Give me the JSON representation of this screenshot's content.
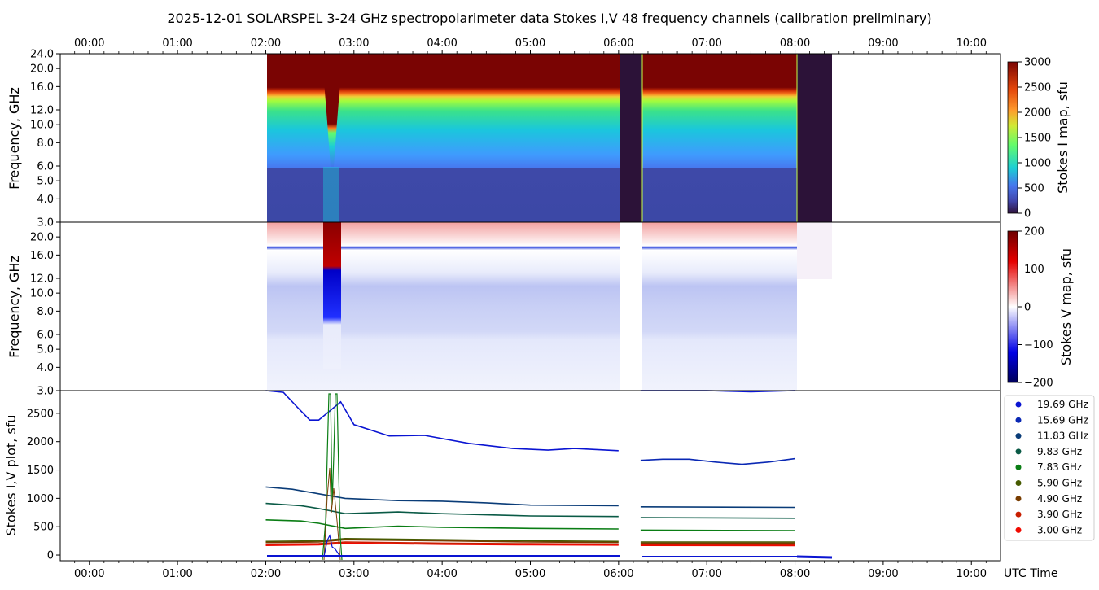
{
  "title": "2025-12-01  SOLARSPEL  3-24 GHz spectropolarimeter data   Stokes I,V   48 frequency channels   (calibration preliminary)",
  "chart_data": {
    "type": "heatmap",
    "date": "2025-12-01",
    "time_axis": {
      "label": "UTC Time",
      "range_hours": [
        -0.33,
        10.33
      ],
      "ticks": [
        "00:00",
        "01:00",
        "02:00",
        "03:00",
        "04:00",
        "05:00",
        "06:00",
        "07:00",
        "08:00",
        "09:00",
        "10:00"
      ],
      "data_start": "02:00",
      "data_end": "08:25",
      "gaps": [
        [
          "06:00",
          "06:15"
        ],
        [
          "08:00",
          "08:25"
        ]
      ]
    },
    "stokes_i_map": {
      "ylabel": "Frequency, GHz",
      "yticks": [
        "3.0",
        "4.0",
        "5.0",
        "6.0",
        "8.0",
        "10.0",
        "12.0",
        "16.0",
        "20.0",
        "24.0"
      ],
      "yrange_ghz": [
        3.0,
        24.0
      ],
      "colorbar": {
        "label": "Stokes I map, sfu",
        "range": [
          0,
          3000
        ],
        "ticks": [
          "0",
          "500",
          "1000",
          "1500",
          "2000",
          "2500",
          "3000"
        ]
      }
    },
    "stokes_v_map": {
      "ylabel": "Frequency, GHz",
      "yticks": [
        "3.0",
        "4.0",
        "5.0",
        "6.0",
        "8.0",
        "10.0",
        "12.0",
        "16.0",
        "20.0"
      ],
      "yrange_ghz": [
        3.0,
        24.0
      ],
      "colorbar": {
        "label": "Stokes V map, sfu",
        "range": [
          -200,
          200
        ],
        "ticks": [
          "200",
          "100",
          "0",
          "−100",
          "−200"
        ]
      }
    },
    "stokes_iv_plot": {
      "type": "line",
      "ylabel": "Stokes I,V plot, sfu",
      "ylim": [
        -100,
        2900
      ],
      "yticks": [
        "0",
        "500",
        "1000",
        "1500",
        "2000",
        "2500"
      ],
      "flare_peak_hours": [
        2.7,
        2.8
      ],
      "series": [
        {
          "name": "19.69 GHz",
          "color": "#0a14d2",
          "points": [
            [
              2.0,
              2950
            ],
            [
              2.2,
              2870
            ],
            [
              2.35,
              2620
            ],
            [
              2.5,
              2380
            ],
            [
              2.6,
              2380
            ],
            [
              2.85,
              2700
            ],
            [
              3.0,
              2300
            ],
            [
              3.4,
              2100
            ],
            [
              3.8,
              2110
            ],
            [
              4.3,
              1970
            ],
            [
              4.8,
              1880
            ],
            [
              5.2,
              1850
            ],
            [
              5.5,
              1880
            ],
            [
              6.0,
              1840
            ]
          ],
          "points_b": [
            [
              6.25,
              2930
            ],
            [
              7.0,
              2910
            ],
            [
              7.5,
              2880
            ],
            [
              8.0,
              2900
            ]
          ]
        },
        {
          "name": "15.69 GHz",
          "color": "#0a28b4",
          "points": [
            [
              6.25,
              1670
            ],
            [
              6.5,
              1690
            ],
            [
              6.8,
              1690
            ],
            [
              7.1,
              1640
            ],
            [
              7.4,
              1600
            ],
            [
              7.7,
              1640
            ],
            [
              8.0,
              1700
            ]
          ]
        },
        {
          "name": "11.83 GHz",
          "color": "#0a3c78",
          "points": [
            [
              2.0,
              1200
            ],
            [
              2.3,
              1160
            ],
            [
              2.6,
              1080
            ],
            [
              2.9,
              1000
            ],
            [
              3.5,
              960
            ],
            [
              4.0,
              950
            ],
            [
              4.5,
              920
            ],
            [
              5.0,
              880
            ],
            [
              6.0,
              870
            ]
          ],
          "points_b": [
            [
              6.25,
              850
            ],
            [
              8.0,
              840
            ]
          ]
        },
        {
          "name": "9.83 GHz",
          "color": "#0a5a46",
          "points": [
            [
              2.0,
              910
            ],
            [
              2.4,
              870
            ],
            [
              2.6,
              820
            ],
            [
              2.9,
              730
            ],
            [
              3.5,
              760
            ],
            [
              4.0,
              730
            ],
            [
              5.0,
              690
            ],
            [
              6.0,
              680
            ]
          ],
          "points_b": [
            [
              6.25,
              660
            ],
            [
              8.0,
              650
            ]
          ]
        },
        {
          "name": "7.83 GHz",
          "color": "#0a7d14",
          "points": [
            [
              2.0,
              620
            ],
            [
              2.4,
              600
            ],
            [
              2.6,
              560
            ],
            [
              2.9,
              470
            ],
            [
              3.5,
              510
            ],
            [
              4.0,
              490
            ],
            [
              5.0,
              470
            ],
            [
              6.0,
              460
            ]
          ],
          "points_b": [
            [
              6.25,
              440
            ],
            [
              8.0,
              430
            ]
          ]
        },
        {
          "name": "5.90 GHz",
          "color": "#465a00",
          "points": [
            [
              2.0,
              240
            ],
            [
              2.6,
              250
            ],
            [
              2.9,
              290
            ],
            [
              4.0,
              270
            ],
            [
              5.0,
              250
            ],
            [
              6.0,
              240
            ]
          ],
          "points_b": [
            [
              6.25,
              230
            ],
            [
              8.0,
              230
            ]
          ]
        },
        {
          "name": "4.90 GHz",
          "color": "#783c00",
          "points": [
            [
              2.0,
              220
            ],
            [
              2.6,
              230
            ],
            [
              2.9,
              270
            ],
            [
              4.0,
              250
            ],
            [
              5.0,
              230
            ],
            [
              6.0,
              220
            ]
          ],
          "points_b": [
            [
              6.25,
              210
            ],
            [
              8.0,
              210
            ]
          ]
        },
        {
          "name": "3.90 GHz",
          "color": "#c81e00",
          "points": [
            [
              2.0,
              190
            ],
            [
              2.6,
              200
            ],
            [
              2.9,
              230
            ],
            [
              4.0,
              210
            ],
            [
              5.0,
              200
            ],
            [
              6.0,
              190
            ]
          ],
          "points_b": [
            [
              6.25,
              190
            ],
            [
              8.0,
              180
            ]
          ]
        },
        {
          "name": "3.00 GHz",
          "color": "#f00a00",
          "points": [
            [
              2.0,
              170
            ],
            [
              2.6,
              180
            ],
            [
              2.9,
              210
            ],
            [
              4.0,
              190
            ],
            [
              5.0,
              180
            ],
            [
              6.0,
              175
            ]
          ],
          "points_b": [
            [
              6.25,
              170
            ],
            [
              8.0,
              165
            ]
          ]
        }
      ]
    }
  }
}
